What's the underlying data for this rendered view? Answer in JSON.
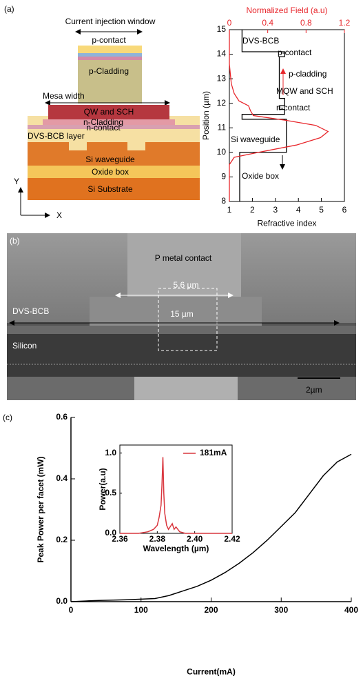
{
  "panels": {
    "a": "(a)",
    "b": "(b)",
    "c": "(c)"
  },
  "diagram": {
    "injection_window": "Current injection window",
    "p_contact": "p-contact",
    "p_cladding": "p-Cladding",
    "mesa_width": "Mesa width",
    "qw_sch": "QW and SCH",
    "n_cladding": "n-Cladding",
    "n_contact": "n-contact",
    "bcb_layer": "DVS-BCB layer",
    "si_waveguide": "Si waveguide",
    "oxide_box": "Oxide box",
    "si_substrate": "Si Substrate",
    "y_axis": "Y",
    "x_axis": "X"
  },
  "sem": {
    "metal_contact": "P metal contact",
    "contact_width": "5.6 µm",
    "bcb": "DVS-BCB",
    "total_width": "15 µm",
    "silicon": "Silicon",
    "scale_bar": "2µm"
  },
  "chart_data": [
    {
      "type": "line",
      "xlabel": "Refractive index",
      "ylabel": "Position (µm)",
      "x2label": "Normalized Field (a.u)",
      "xlim": [
        1,
        6
      ],
      "xticks": [
        1,
        2,
        3,
        4,
        5,
        6
      ],
      "ylim": [
        8,
        15
      ],
      "yticks": [
        8,
        9,
        10,
        11,
        12,
        13,
        14,
        15
      ],
      "x2lim": [
        0,
        1.2
      ],
      "x2ticks": [
        0,
        0.4,
        0.8,
        1.2
      ],
      "annotations": [
        "DVS-BCB",
        "p-contact",
        "p-cladding",
        "MQW and SCH",
        "n-contact",
        "Si waveguide",
        "Oxide box"
      ],
      "series": [
        {
          "color": "#000000",
          "x": [
            1.55,
            1.55,
            3.4,
            3.4,
            3.17,
            3.17,
            3.4,
            3.4,
            3.17,
            3.17,
            3.4,
            3.4,
            1.55,
            1.55,
            3.48,
            3.48,
            1.45,
            1.45
          ],
          "values": [
            15,
            14.1,
            14.1,
            13.9,
            13.9,
            12.2,
            12.2,
            11.9,
            11.9,
            11.75,
            11.75,
            11.55,
            11.55,
            11.35,
            11.35,
            10.0,
            10.0,
            8
          ]
        },
        {
          "color": "#e8262b",
          "axis": "x2",
          "x": [
            0,
            0,
            0.05,
            0.3,
            0.7,
            0.95,
            1.03,
            0.9,
            0.6,
            0.25,
            0.22,
            0.2,
            0.1,
            0.05,
            0.02,
            0.01,
            0,
            0,
            0
          ],
          "values": [
            8,
            9.5,
            9.8,
            10.0,
            10.3,
            10.6,
            10.85,
            11.1,
            11.3,
            11.5,
            11.7,
            11.9,
            12.1,
            12.4,
            12.8,
            13.2,
            13.6,
            14,
            15
          ]
        }
      ]
    },
    {
      "type": "line",
      "xlabel": "Current(mA)",
      "ylabel": "Peak Power per facet (mW)",
      "xlim": [
        0,
        400
      ],
      "xticks": [
        0,
        100,
        200,
        300,
        400
      ],
      "ylim": [
        0,
        0.6
      ],
      "yticks": [
        {
          "value": 0,
          "label": "0.0"
        },
        0.2,
        0.4,
        0.6
      ],
      "series": [
        {
          "color": "#000000",
          "x": [
            0,
            20,
            40,
            60,
            80,
            100,
            120,
            140,
            160,
            180,
            200,
            220,
            240,
            260,
            280,
            300,
            320,
            340,
            360,
            380,
            400
          ],
          "values": [
            0,
            0.002,
            0.004,
            0.005,
            0.006,
            0.008,
            0.01,
            0.02,
            0.035,
            0.05,
            0.07,
            0.095,
            0.125,
            0.16,
            0.2,
            0.245,
            0.29,
            0.35,
            0.41,
            0.455,
            0.48
          ]
        }
      ]
    },
    {
      "type": "line",
      "xlabel": "Wavelength (µm)",
      "ylabel": "Power(a.u)",
      "xlim": [
        2.36,
        2.42
      ],
      "xticks": [
        2.36,
        2.38,
        {
          "value": 2.4,
          "label": "2.40"
        },
        2.42
      ],
      "ylim": [
        0,
        1.1
      ],
      "yticks": [
        {
          "value": 0,
          "label": "0.0"
        },
        0.5,
        {
          "value": 1,
          "label": "1.0"
        }
      ],
      "series": [
        {
          "name": "181mA",
          "color": "#d9363e",
          "x": [
            2.36,
            2.37,
            2.375,
            2.378,
            2.38,
            2.381,
            2.382,
            2.3825,
            2.383,
            2.3835,
            2.384,
            2.385,
            2.386,
            2.388,
            2.389,
            2.39,
            2.392,
            2.395,
            2.42
          ],
          "values": [
            0,
            0,
            0.02,
            0.05,
            0.1,
            0.2,
            0.35,
            0.6,
            0.95,
            0.5,
            0.25,
            0.1,
            0.05,
            0.12,
            0.05,
            0.08,
            0.02,
            0,
            0
          ]
        }
      ]
    }
  ]
}
